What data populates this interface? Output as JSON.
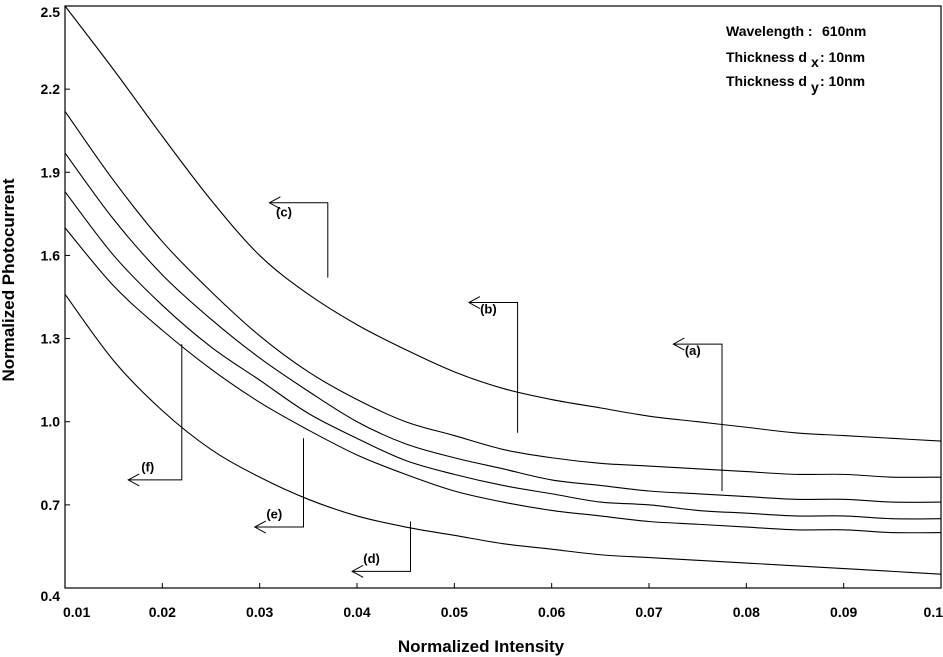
{
  "chart_data": {
    "type": "line",
    "title": "",
    "xlabel": "Normalized Intensity",
    "ylabel": "Normalized Photocurrent",
    "xlim": [
      0.01,
      0.1
    ],
    "ylim": [
      0.4,
      2.5
    ],
    "x_ticks": [
      0.01,
      0.02,
      0.03,
      0.04,
      0.05,
      0.06,
      0.07,
      0.08,
      0.09,
      0.1
    ],
    "x_tick_labels": [
      "0.01",
      "0.02",
      "0.03",
      "0.04",
      "0.05",
      "0.06",
      "0.07",
      "0.08",
      "0.09",
      "0.1"
    ],
    "y_ticks": [
      0.4,
      0.7,
      1.0,
      1.3,
      1.6,
      1.9,
      2.2,
      2.5
    ],
    "y_tick_labels": [
      "0.4",
      "0.7",
      "1.0",
      "1.3",
      "1.6",
      "1.9",
      "2.2",
      "2.5"
    ],
    "grid": false,
    "x": [
      0.01,
      0.015,
      0.02,
      0.025,
      0.03,
      0.035,
      0.04,
      0.045,
      0.05,
      0.055,
      0.06,
      0.065,
      0.07,
      0.075,
      0.08,
      0.085,
      0.09,
      0.095,
      0.1
    ],
    "series": [
      {
        "name": "(c)",
        "values": [
          2.5,
          2.27,
          2.03,
          1.8,
          1.6,
          1.46,
          1.35,
          1.26,
          1.18,
          1.12,
          1.08,
          1.05,
          1.02,
          1.0,
          0.98,
          0.96,
          0.95,
          0.94,
          0.93
        ]
      },
      {
        "name": "(b)",
        "values": [
          2.12,
          1.87,
          1.65,
          1.47,
          1.31,
          1.18,
          1.08,
          1.0,
          0.95,
          0.9,
          0.87,
          0.85,
          0.84,
          0.83,
          0.82,
          0.81,
          0.81,
          0.8,
          0.8
        ]
      },
      {
        "name": "(a)",
        "values": [
          1.97,
          1.73,
          1.53,
          1.37,
          1.23,
          1.11,
          1.0,
          0.92,
          0.87,
          0.83,
          0.79,
          0.77,
          0.75,
          0.74,
          0.73,
          0.72,
          0.72,
          0.71,
          0.71
        ]
      },
      {
        "name": "(e)",
        "values": [
          1.83,
          1.6,
          1.42,
          1.27,
          1.15,
          1.03,
          0.94,
          0.86,
          0.81,
          0.77,
          0.74,
          0.71,
          0.7,
          0.68,
          0.67,
          0.66,
          0.66,
          0.65,
          0.65
        ]
      },
      {
        "name": "(f)",
        "values": [
          1.7,
          1.49,
          1.33,
          1.19,
          1.07,
          0.97,
          0.88,
          0.81,
          0.75,
          0.71,
          0.68,
          0.66,
          0.64,
          0.63,
          0.62,
          0.61,
          0.61,
          0.6,
          0.6
        ]
      },
      {
        "name": "(d)",
        "values": [
          1.46,
          1.22,
          1.04,
          0.9,
          0.8,
          0.72,
          0.66,
          0.62,
          0.59,
          0.56,
          0.54,
          0.52,
          0.51,
          0.5,
          0.49,
          0.48,
          0.47,
          0.46,
          0.45
        ]
      }
    ],
    "annotations": [
      {
        "label": "(c)",
        "leader": [
          [
            0.037,
            1.52
          ],
          [
            0.037,
            1.79
          ],
          [
            0.031,
            1.79
          ]
        ],
        "text_at": [
          0.0325,
          1.74
        ]
      },
      {
        "label": "(b)",
        "leader": [
          [
            0.0565,
            0.96
          ],
          [
            0.0565,
            1.43
          ],
          [
            0.0515,
            1.43
          ]
        ],
        "text_at": [
          0.0535,
          1.39
        ]
      },
      {
        "label": "(a)",
        "leader": [
          [
            0.0775,
            0.75
          ],
          [
            0.0775,
            1.28
          ],
          [
            0.0725,
            1.28
          ]
        ],
        "text_at": [
          0.0745,
          1.24
        ]
      },
      {
        "label": "(f)",
        "leader": [
          [
            0.022,
            1.28
          ],
          [
            0.022,
            0.79
          ],
          [
            0.0165,
            0.79
          ]
        ],
        "text_at": [
          0.0185,
          0.82
        ]
      },
      {
        "label": "(e)",
        "leader": [
          [
            0.0345,
            0.94
          ],
          [
            0.0345,
            0.62
          ],
          [
            0.0295,
            0.62
          ]
        ],
        "text_at": [
          0.0315,
          0.65
        ]
      },
      {
        "label": "(d)",
        "leader": [
          [
            0.0455,
            0.64
          ],
          [
            0.0455,
            0.46
          ],
          [
            0.0395,
            0.46
          ]
        ],
        "text_at": [
          0.0415,
          0.49
        ]
      }
    ]
  },
  "info": {
    "wavelength_label": "Wavelength :",
    "wavelength_value": "610nm",
    "thickness_x_label": "Thickness d",
    "thickness_x_sub": "x",
    "thickness_x_value": ": 10nm",
    "thickness_y_label": "Thickness d",
    "thickness_y_sub": "y",
    "thickness_y_value": ": 10nm"
  },
  "colors": {
    "line": "#000000",
    "background": "#ffffff"
  }
}
